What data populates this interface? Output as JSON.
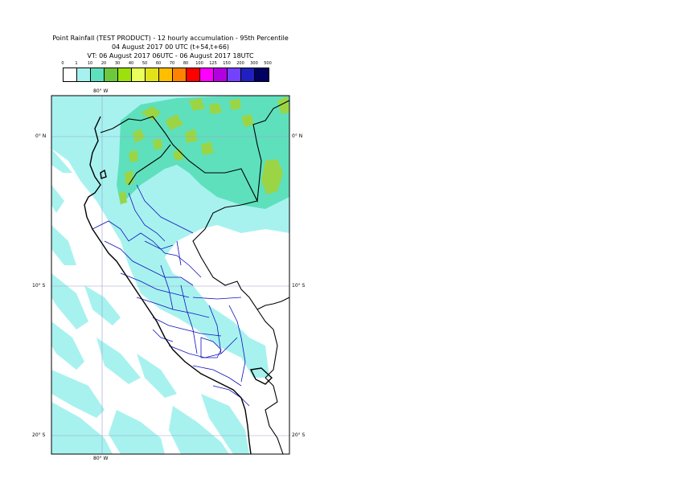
{
  "title": {
    "line1": "Point Rainfall (TEST PRODUCT) - 12 hourly accumulation - 95th Percentile",
    "line2": "04 August 2017 00 UTC (t+54,t+66)",
    "line3": "VT: 06 August 2017 06UTC - 06 August 2017 18UTC"
  },
  "legend": {
    "thresholds": [
      "0",
      "1",
      "10",
      "20",
      "30",
      "40",
      "50",
      "60",
      "70",
      "80",
      "100",
      "125",
      "150",
      "200",
      "300",
      "500"
    ],
    "colors": [
      "#ffffff",
      "#a7f2ef",
      "#5ee0bd",
      "#6cc83c",
      "#9ce00c",
      "#e9ff5c",
      "#e2e21a",
      "#ffbf00",
      "#ff8200",
      "#ff0000",
      "#ff00ff",
      "#b400e0",
      "#7342ff",
      "#2020c0",
      "#000060"
    ]
  },
  "map": {
    "colors": {
      "ocean_bg": "#ffffff",
      "rain_low": "#a7f2ef",
      "rain_mid": "#5ee0bd",
      "rain_high": "#9bd545",
      "coast": "#000000",
      "border": "#000000",
      "admin": "#1010c0",
      "grid": "#9aa0c8"
    },
    "lon_label_top": "80° W",
    "lon_label_bottom": "80° W",
    "lat_labels_left": [
      "0° N",
      "10° S",
      "20° S"
    ],
    "lat_labels_right": [
      "0° N",
      "10° S",
      "20° S"
    ]
  }
}
